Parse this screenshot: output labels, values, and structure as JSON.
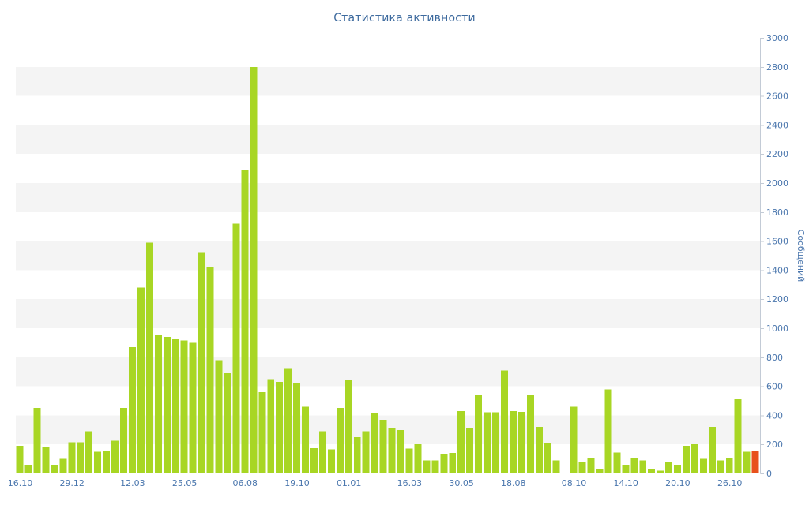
{
  "page": {
    "background": "#ffffff"
  },
  "chart_data": {
    "type": "bar",
    "title": "Статистика активности",
    "y_axis_title": "Сообщений",
    "y_axis_side": "right",
    "grid": "horizontal-stripes",
    "legend": null,
    "ylim": [
      0,
      3000
    ],
    "y_tick_step": 200,
    "y_tick_labels": [
      "0",
      "200",
      "400",
      "600",
      "800",
      "1000",
      "1200",
      "1400",
      "1600",
      "1800",
      "2000",
      "2200",
      "2400",
      "2600",
      "2800",
      "3000"
    ],
    "x_ticks": [
      {
        "index": 0,
        "label": "16.10"
      },
      {
        "index": 6,
        "label": "29.12"
      },
      {
        "index": 13,
        "label": "12.03"
      },
      {
        "index": 19,
        "label": "25.05"
      },
      {
        "index": 26,
        "label": "06.08"
      },
      {
        "index": 32,
        "label": "19.10"
      },
      {
        "index": 38,
        "label": "01.01"
      },
      {
        "index": 45,
        "label": "16.03"
      },
      {
        "index": 51,
        "label": "30.05"
      },
      {
        "index": 57,
        "label": "18.08"
      },
      {
        "index": 64,
        "label": "08.10"
      },
      {
        "index": 70,
        "label": "14.10"
      },
      {
        "index": 76,
        "label": "20.10"
      },
      {
        "index": 82,
        "label": "26.10"
      }
    ],
    "values": [
      190,
      60,
      450,
      180,
      60,
      100,
      215,
      215,
      290,
      150,
      155,
      225,
      450,
      870,
      1280,
      1590,
      950,
      940,
      930,
      915,
      900,
      1520,
      1420,
      780,
      690,
      1720,
      2090,
      2800,
      560,
      650,
      630,
      720,
      620,
      460,
      175,
      290,
      165,
      450,
      640,
      250,
      290,
      415,
      370,
      310,
      300,
      170,
      200,
      90,
      90,
      130,
      140,
      430,
      310,
      540,
      420,
      420,
      710,
      430,
      425,
      540,
      320,
      210,
      90,
      0,
      460,
      75,
      110,
      30,
      580,
      145,
      60,
      105,
      90,
      30,
      20,
      75,
      60,
      190,
      200,
      100,
      320,
      90,
      110,
      510,
      150,
      155
    ],
    "highlight_index": 85,
    "colors": {
      "bar": "#a8d624",
      "highlight_bar": "#e8511c",
      "title_text": "#3d6a9e",
      "axis_text": "#4a76ad",
      "stripe": "#f4f4f4",
      "axis_line": "#c3cbd6"
    }
  }
}
